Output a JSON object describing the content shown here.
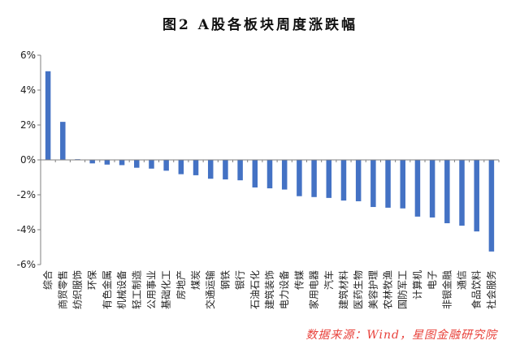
{
  "chart_data": {
    "type": "bar",
    "title": "图2 A股各板块周度涨跌幅",
    "categories": [
      "综合",
      "商贸零售",
      "纺织服饰",
      "环保",
      "有色金属",
      "机械设备",
      "轻工制造",
      "公用事业",
      "基础化工",
      "房地产",
      "煤炭",
      "交通运输",
      "钢铁",
      "银行",
      "石油石化",
      "建筑装饰",
      "电力设备",
      "传媒",
      "家用电器",
      "汽车",
      "建筑材料",
      "医药生物",
      "美容护理",
      "农林牧渔",
      "国防军工",
      "计算机",
      "电子",
      "非银金融",
      "通信",
      "食品饮料",
      "社会服务"
    ],
    "values": [
      5.08,
      2.18,
      0.04,
      -0.2,
      -0.27,
      -0.3,
      -0.45,
      -0.5,
      -0.62,
      -0.82,
      -0.88,
      -1.08,
      -1.12,
      -1.17,
      -1.58,
      -1.63,
      -1.7,
      -2.08,
      -2.13,
      -2.18,
      -2.33,
      -2.37,
      -2.7,
      -2.74,
      -2.78,
      -3.25,
      -3.3,
      -3.63,
      -3.77,
      -4.1,
      -5.25
    ],
    "unit": "%",
    "ylim": [
      -6,
      6
    ],
    "yticks": [
      6,
      4,
      2,
      0,
      -2,
      -4,
      -6
    ],
    "ytick_labels": [
      "6%",
      "4%",
      "2%",
      "0%",
      "-2%",
      "-4%",
      "-6%"
    ],
    "grid": false,
    "bar_color": "#4472C4",
    "axis_color": "#7F7F7F"
  },
  "source_note": {
    "text": "数据来源：Wind，星图金融研究院",
    "color": "#E8403A"
  }
}
